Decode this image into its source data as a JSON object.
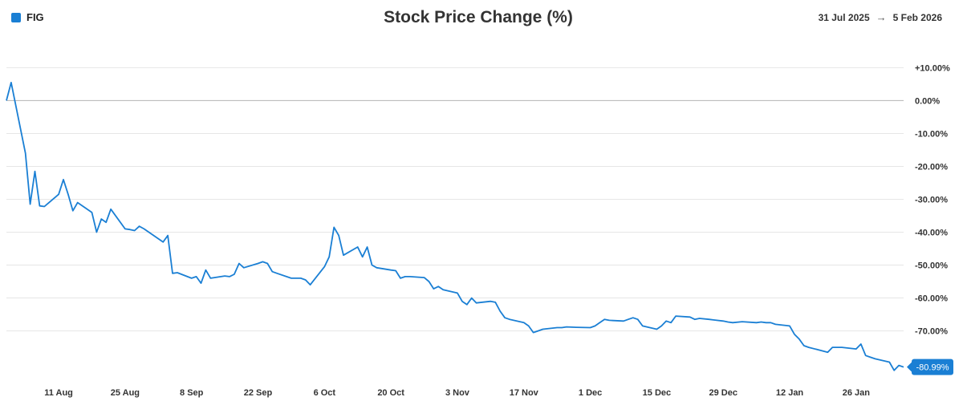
{
  "header": {
    "legend_label": "FIG",
    "title": "Stock Price Change (%)",
    "range_start": "31 Jul 2025",
    "range_arrow": "→",
    "range_end": "5 Feb 2026"
  },
  "colors": {
    "series": "#1a7fd4",
    "grid": "#e6e6e6",
    "zero_line": "#bdbdbd",
    "badge": "#1a7fd4"
  },
  "chart_data": {
    "type": "line",
    "title": "Stock Price Change (%)",
    "xlabel": "",
    "ylabel": "",
    "xlim": [
      "2025-07-31",
      "2026-02-05"
    ],
    "ylim": [
      -84,
      14
    ],
    "y_ticks": [
      10,
      0,
      -10,
      -20,
      -30,
      -40,
      -50,
      -60,
      -70
    ],
    "y_tick_labels": [
      "+10.00%",
      "0.00%",
      "-10.00%",
      "-20.00%",
      "-30.00%",
      "-40.00%",
      "-50.00%",
      "-60.00%",
      "-70.00%"
    ],
    "x_ticks": [
      "2025-08-11",
      "2025-08-25",
      "2025-09-08",
      "2025-09-22",
      "2025-10-06",
      "2025-10-20",
      "2025-11-03",
      "2025-11-17",
      "2025-12-01",
      "2025-12-15",
      "2025-12-29",
      "2026-01-12",
      "2026-01-26"
    ],
    "x_tick_labels": [
      "11 Aug",
      "25 Aug",
      "8 Sep",
      "22 Sep",
      "6 Oct",
      "20 Oct",
      "3 Nov",
      "17 Nov",
      "1 Dec",
      "15 Dec",
      "29 Dec",
      "12 Jan",
      "26 Jan"
    ],
    "grid": true,
    "legend": "top-left",
    "last_value_label": "-80.99%",
    "series": [
      {
        "name": "FIG",
        "points": [
          [
            "2025-07-31",
            0.0
          ],
          [
            "2025-08-01",
            5.5
          ],
          [
            "2025-08-04",
            -16.0
          ],
          [
            "2025-08-05",
            -31.5
          ],
          [
            "2025-08-06",
            -21.5
          ],
          [
            "2025-08-07",
            -32.0
          ],
          [
            "2025-08-08",
            -32.2
          ],
          [
            "2025-08-11",
            -28.5
          ],
          [
            "2025-08-12",
            -24.0
          ],
          [
            "2025-08-13",
            -28.5
          ],
          [
            "2025-08-14",
            -33.5
          ],
          [
            "2025-08-15",
            -31.0
          ],
          [
            "2025-08-18",
            -34.0
          ],
          [
            "2025-08-19",
            -40.0
          ],
          [
            "2025-08-20",
            -36.0
          ],
          [
            "2025-08-21",
            -37.0
          ],
          [
            "2025-08-22",
            -33.0
          ],
          [
            "2025-08-25",
            -39.0
          ],
          [
            "2025-08-26",
            -39.2
          ],
          [
            "2025-08-27",
            -39.5
          ],
          [
            "2025-08-28",
            -38.2
          ],
          [
            "2025-08-29",
            -39.0
          ],
          [
            "2025-09-02",
            -43.0
          ],
          [
            "2025-09-03",
            -41.0
          ],
          [
            "2025-09-04",
            -52.5
          ],
          [
            "2025-09-05",
            -52.3
          ],
          [
            "2025-09-08",
            -54.0
          ],
          [
            "2025-09-09",
            -53.5
          ],
          [
            "2025-09-10",
            -55.5
          ],
          [
            "2025-09-11",
            -51.5
          ],
          [
            "2025-09-12",
            -54.0
          ],
          [
            "2025-09-15",
            -53.3
          ],
          [
            "2025-09-16",
            -53.5
          ],
          [
            "2025-09-17",
            -52.8
          ],
          [
            "2025-09-18",
            -49.5
          ],
          [
            "2025-09-19",
            -50.8
          ],
          [
            "2025-09-22",
            -49.5
          ],
          [
            "2025-09-23",
            -49.0
          ],
          [
            "2025-09-24",
            -49.5
          ],
          [
            "2025-09-25",
            -52.0
          ],
          [
            "2025-09-26",
            -52.5
          ],
          [
            "2025-09-29",
            -54.0
          ],
          [
            "2025-09-30",
            -54.0
          ],
          [
            "2025-10-01",
            -54.0
          ],
          [
            "2025-10-02",
            -54.5
          ],
          [
            "2025-10-03",
            -56.0
          ],
          [
            "2025-10-06",
            -50.5
          ],
          [
            "2025-10-07",
            -47.5
          ],
          [
            "2025-10-08",
            -38.5
          ],
          [
            "2025-10-09",
            -41.0
          ],
          [
            "2025-10-10",
            -47.0
          ],
          [
            "2025-10-13",
            -44.5
          ],
          [
            "2025-10-14",
            -47.5
          ],
          [
            "2025-10-15",
            -44.5
          ],
          [
            "2025-10-16",
            -50.0
          ],
          [
            "2025-10-17",
            -50.8
          ],
          [
            "2025-10-20",
            -51.5
          ],
          [
            "2025-10-21",
            -51.7
          ],
          [
            "2025-10-22",
            -54.0
          ],
          [
            "2025-10-23",
            -53.5
          ],
          [
            "2025-10-24",
            -53.5
          ],
          [
            "2025-10-27",
            -53.8
          ],
          [
            "2025-10-28",
            -55.0
          ],
          [
            "2025-10-29",
            -57.2
          ],
          [
            "2025-10-30",
            -56.5
          ],
          [
            "2025-10-31",
            -57.5
          ],
          [
            "2025-11-03",
            -58.5
          ],
          [
            "2025-11-04",
            -61.0
          ],
          [
            "2025-11-05",
            -62.0
          ],
          [
            "2025-11-06",
            -60.0
          ],
          [
            "2025-11-07",
            -61.5
          ],
          [
            "2025-11-10",
            -61.0
          ],
          [
            "2025-11-11",
            -61.3
          ],
          [
            "2025-11-12",
            -64.0
          ],
          [
            "2025-11-13",
            -66.0
          ],
          [
            "2025-11-14",
            -66.5
          ],
          [
            "2025-11-17",
            -67.5
          ],
          [
            "2025-11-18",
            -68.5
          ],
          [
            "2025-11-19",
            -70.5
          ],
          [
            "2025-11-20",
            -70.0
          ],
          [
            "2025-11-21",
            -69.5
          ],
          [
            "2025-11-24",
            -69.0
          ],
          [
            "2025-11-25",
            -69.0
          ],
          [
            "2025-11-26",
            -68.8
          ],
          [
            "2025-11-28",
            -68.9
          ],
          [
            "2025-12-01",
            -69.0
          ],
          [
            "2025-12-02",
            -68.5
          ],
          [
            "2025-12-03",
            -67.5
          ],
          [
            "2025-12-04",
            -66.5
          ],
          [
            "2025-12-05",
            -66.8
          ],
          [
            "2025-12-08",
            -67.0
          ],
          [
            "2025-12-09",
            -66.5
          ],
          [
            "2025-12-10",
            -66.0
          ],
          [
            "2025-12-11",
            -66.5
          ],
          [
            "2025-12-12",
            -68.5
          ],
          [
            "2025-12-15",
            -69.5
          ],
          [
            "2025-12-16",
            -68.5
          ],
          [
            "2025-12-17",
            -67.0
          ],
          [
            "2025-12-18",
            -67.5
          ],
          [
            "2025-12-19",
            -65.5
          ],
          [
            "2025-12-22",
            -65.8
          ],
          [
            "2025-12-23",
            -66.5
          ],
          [
            "2025-12-24",
            -66.2
          ],
          [
            "2025-12-26",
            -66.5
          ],
          [
            "2025-12-29",
            -67.0
          ],
          [
            "2025-12-30",
            -67.3
          ],
          [
            "2025-12-31",
            -67.5
          ],
          [
            "2026-01-02",
            -67.2
          ],
          [
            "2026-01-05",
            -67.5
          ],
          [
            "2026-01-06",
            -67.3
          ],
          [
            "2026-01-07",
            -67.5
          ],
          [
            "2026-01-08",
            -67.5
          ],
          [
            "2026-01-09",
            -68.0
          ],
          [
            "2026-01-12",
            -68.5
          ],
          [
            "2026-01-13",
            -71.0
          ],
          [
            "2026-01-14",
            -72.5
          ],
          [
            "2026-01-15",
            -74.5
          ],
          [
            "2026-01-16",
            -75.0
          ],
          [
            "2026-01-20",
            -76.5
          ],
          [
            "2026-01-21",
            -75.0
          ],
          [
            "2026-01-22",
            -75.0
          ],
          [
            "2026-01-23",
            -75.0
          ],
          [
            "2026-01-26",
            -75.5
          ],
          [
            "2026-01-27",
            -74.0
          ],
          [
            "2026-01-28",
            -77.5
          ],
          [
            "2026-01-29",
            -78.0
          ],
          [
            "2026-01-30",
            -78.5
          ],
          [
            "2026-02-02",
            -79.5
          ],
          [
            "2026-02-03",
            -82.0
          ],
          [
            "2026-02-04",
            -80.5
          ],
          [
            "2026-02-05",
            -80.99
          ]
        ]
      }
    ]
  }
}
